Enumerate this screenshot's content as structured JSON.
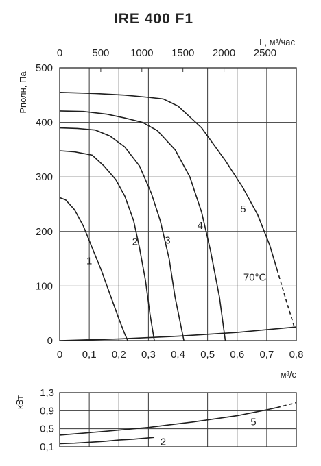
{
  "chart_data": [
    {
      "type": "line",
      "title": "IRE 400 F1",
      "xlabel": "м³/с",
      "ylabel": "Pполн, Па",
      "x2label": "L, м³/час",
      "xlim": [
        0,
        0.8
      ],
      "ylim": [
        0,
        500
      ],
      "x2lim": [
        0,
        2880
      ],
      "xticks": [
        "0",
        "0,1",
        "0,2",
        "0,3",
        "0,4",
        "0,5",
        "0,6",
        "0,7",
        "0,8"
      ],
      "xtick_values": [
        0,
        0.1,
        0.2,
        0.3,
        0.4,
        0.5,
        0.6,
        0.7,
        0.8
      ],
      "yticks": [
        "0",
        "100",
        "200",
        "300",
        "400",
        "500"
      ],
      "ytick_values": [
        0,
        100,
        200,
        300,
        400,
        500
      ],
      "x2ticks": [
        "0",
        "500",
        "1000",
        "1500",
        "2000",
        "2500"
      ],
      "x2tick_values": [
        0,
        500,
        1000,
        1500,
        2000,
        2500
      ],
      "grid": true,
      "annotations": [
        "70°C"
      ],
      "series": [
        {
          "name": "1",
          "x": [
            0,
            0.02,
            0.05,
            0.08,
            0.11,
            0.14,
            0.17,
            0.2,
            0.22,
            0.23
          ],
          "y": [
            262,
            258,
            240,
            210,
            170,
            130,
            85,
            40,
            12,
            0
          ]
        },
        {
          "name": "2",
          "x": [
            0,
            0.05,
            0.11,
            0.15,
            0.19,
            0.22,
            0.25,
            0.27,
            0.29,
            0.305,
            0.32
          ],
          "y": [
            348,
            346,
            340,
            320,
            295,
            265,
            220,
            170,
            110,
            50,
            0
          ]
        },
        {
          "name": "3",
          "x": [
            0,
            0.06,
            0.12,
            0.17,
            0.22,
            0.27,
            0.31,
            0.34,
            0.37,
            0.39,
            0.42
          ],
          "y": [
            390,
            389,
            386,
            375,
            355,
            320,
            270,
            220,
            150,
            80,
            0
          ]
        },
        {
          "name": "4",
          "x": [
            0,
            0.08,
            0.16,
            0.22,
            0.28,
            0.33,
            0.39,
            0.44,
            0.48,
            0.51,
            0.54,
            0.56
          ],
          "y": [
            421,
            420,
            415,
            408,
            400,
            385,
            350,
            300,
            235,
            165,
            80,
            0
          ]
        },
        {
          "name": "5",
          "x": [
            0,
            0.12,
            0.22,
            0.3,
            0.35,
            0.4,
            0.48,
            0.56,
            0.62,
            0.67,
            0.71,
            0.735
          ],
          "y": [
            455,
            453,
            450,
            446,
            443,
            430,
            390,
            330,
            280,
            230,
            175,
            130
          ]
        },
        {
          "name": "70°C",
          "x": [
            0.735,
            0.765,
            0.795
          ],
          "y": [
            130,
            75,
            22
          ]
        },
        {
          "name": "",
          "x": [
            0,
            0.2,
            0.4,
            0.6,
            0.8
          ],
          "y": [
            0,
            3,
            8,
            15,
            25
          ]
        }
      ]
    },
    {
      "type": "line",
      "ylabel": "кВт",
      "xlim": [
        0,
        0.8
      ],
      "ylim": [
        0.1,
        1.3
      ],
      "yticks": [
        "1,3",
        "0,9",
        "0,5",
        "0,1"
      ],
      "ytick_values": [
        1.3,
        0.9,
        0.5,
        0.1
      ],
      "grid": true,
      "series": [
        {
          "name": "5",
          "x": [
            0,
            0.15,
            0.3,
            0.45,
            0.6,
            0.7,
            0.735
          ],
          "y": [
            0.36,
            0.44,
            0.53,
            0.65,
            0.79,
            0.92,
            0.97
          ]
        },
        {
          "name": "5-dashed",
          "x": [
            0.735,
            0.8
          ],
          "y": [
            0.97,
            1.08
          ]
        },
        {
          "name": "2",
          "x": [
            0,
            0.05,
            0.1,
            0.15,
            0.2,
            0.25,
            0.32
          ],
          "y": [
            0.17,
            0.18,
            0.2,
            0.22,
            0.25,
            0.27,
            0.31
          ]
        }
      ]
    }
  ]
}
